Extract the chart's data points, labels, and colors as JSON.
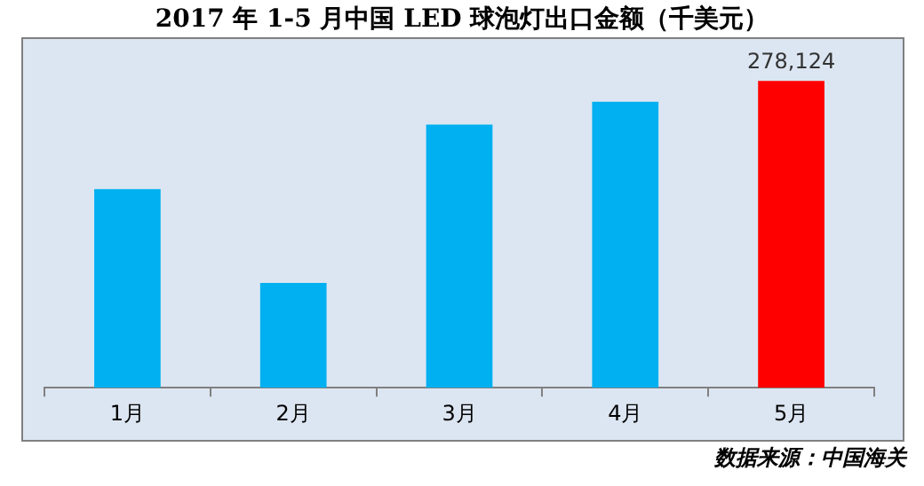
{
  "chart_data": {
    "type": "bar",
    "title": "2017 年 1-5 月中国 LED 球泡灯出口金额（千美元）",
    "categories": [
      "1月",
      "2月",
      "3月",
      "4月",
      "5月"
    ],
    "values": [
      180000,
      95000,
      238600,
      259200,
      278124
    ],
    "colors": [
      "#00b0f0",
      "#00b0f0",
      "#00b0f0",
      "#00b0f0",
      "#ff0000"
    ],
    "value_labels": [
      null,
      null,
      null,
      null,
      "278,124"
    ],
    "tick_labels": "x",
    "grid": false,
    "legend": false,
    "annotations": [
      "数据来源：中国海关"
    ]
  }
}
